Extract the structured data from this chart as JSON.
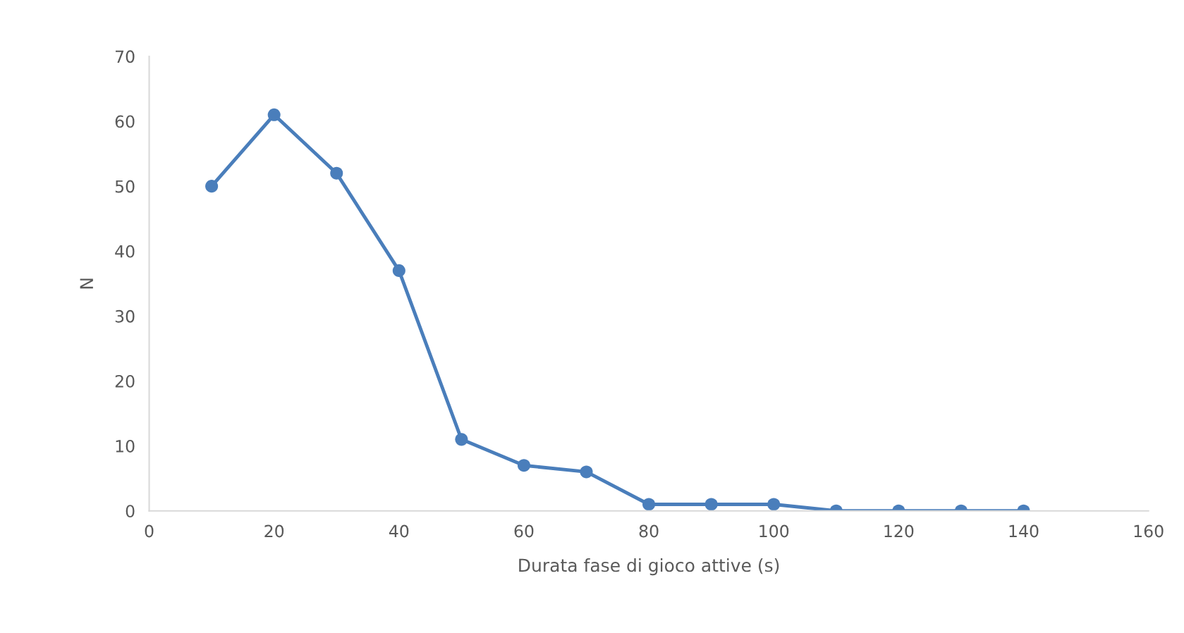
{
  "chart_data": {
    "type": "line",
    "xlabel": "Durata fase di gioco attive (s)",
    "ylabel": "N",
    "x": [
      10,
      20,
      30,
      40,
      50,
      60,
      70,
      80,
      90,
      100,
      110,
      120,
      130,
      140
    ],
    "series": [
      {
        "color": "#4a7ebb",
        "values": [
          50,
          61,
          52,
          37,
          11,
          7,
          6,
          1,
          1,
          1,
          0,
          0,
          0,
          0
        ]
      }
    ],
    "xlim": [
      0,
      160
    ],
    "xticks": [
      0,
      20,
      40,
      60,
      80,
      100,
      120,
      140,
      160
    ],
    "ylim": [
      0,
      70
    ],
    "yticks": [
      0,
      10,
      20,
      30,
      40,
      50,
      60,
      70
    ],
    "grid": false,
    "marker": "circle",
    "line_style": "solid"
  }
}
